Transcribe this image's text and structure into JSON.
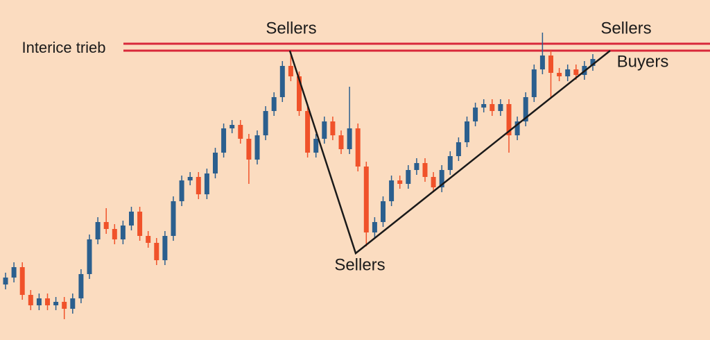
{
  "chart_data": {
    "type": "candlestick",
    "annotations": [
      "Sellers",
      "Sellers",
      "Buyers",
      "Sellers",
      "Interice trieb"
    ],
    "up_color": "#2b5f8e",
    "down_color": "#f0522a",
    "ylim": [
      0,
      490
    ],
    "open": [
      80,
      90,
      105,
      65,
      50,
      60,
      50,
      55,
      45,
      60,
      95,
      145,
      170,
      160,
      145,
      165,
      185,
      150,
      140,
      115,
      150,
      200,
      230,
      235,
      210,
      240,
      270,
      305,
      310,
      290,
      260,
      295,
      330,
      350,
      395,
      380,
      330,
      270,
      290,
      315,
      295,
      275,
      305,
      250,
      155,
      170,
      200,
      230,
      225,
      245,
      255,
      235,
      220,
      245,
      265,
      285,
      315,
      335,
      340,
      330,
      340,
      295,
      315,
      350,
      390,
      410,
      385,
      380,
      390,
      382,
      395
    ],
    "high": [
      97,
      112,
      112,
      72,
      67,
      67,
      62,
      62,
      67,
      102,
      152,
      177,
      190,
      167,
      172,
      192,
      192,
      157,
      147,
      157,
      207,
      237,
      242,
      242,
      247,
      277,
      312,
      317,
      317,
      297,
      302,
      337,
      357,
      402,
      417,
      387,
      337,
      297,
      322,
      322,
      302,
      365,
      312,
      257,
      177,
      207,
      237,
      237,
      252,
      262,
      262,
      242,
      252,
      272,
      292,
      322,
      342,
      347,
      347,
      347,
      347,
      322,
      357,
      397,
      443,
      417,
      392,
      397,
      397,
      402,
      412
    ],
    "low": [
      73,
      83,
      58,
      43,
      43,
      43,
      43,
      30,
      38,
      53,
      88,
      138,
      153,
      138,
      138,
      158,
      143,
      133,
      108,
      108,
      143,
      193,
      223,
      203,
      203,
      233,
      263,
      298,
      283,
      225,
      253,
      288,
      323,
      343,
      373,
      323,
      263,
      263,
      283,
      288,
      268,
      268,
      243,
      135,
      148,
      163,
      193,
      218,
      218,
      238,
      228,
      213,
      213,
      238,
      258,
      278,
      308,
      328,
      323,
      323,
      270,
      288,
      308,
      343,
      383,
      350,
      373,
      373,
      375,
      375,
      388
    ],
    "close": [
      90,
      105,
      65,
      50,
      60,
      50,
      55,
      45,
      60,
      95,
      145,
      170,
      160,
      145,
      165,
      185,
      150,
      140,
      115,
      150,
      200,
      230,
      235,
      210,
      240,
      270,
      305,
      310,
      290,
      260,
      295,
      330,
      350,
      395,
      380,
      330,
      270,
      290,
      315,
      295,
      275,
      305,
      250,
      155,
      170,
      200,
      230,
      225,
      245,
      255,
      235,
      220,
      245,
      265,
      285,
      315,
      335,
      340,
      330,
      340,
      295,
      315,
      350,
      390,
      410,
      385,
      380,
      390,
      382,
      395,
      405
    ]
  }
}
